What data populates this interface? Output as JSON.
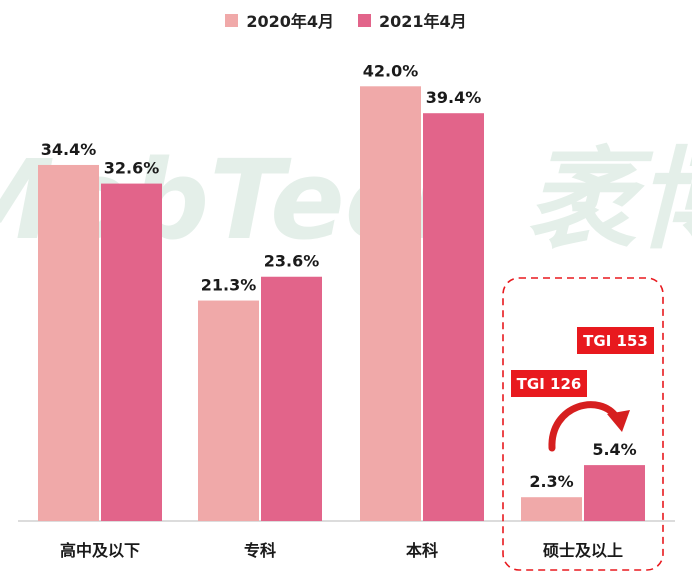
{
  "chart_data": {
    "type": "bar",
    "categories": [
      "高中及以下",
      "专科",
      "本科",
      "硕士及以上"
    ],
    "series": [
      {
        "name": "2020年4月",
        "values": [
          34.4,
          21.3,
          42.0,
          2.3
        ],
        "labels": [
          "34.4%",
          "21.3%",
          "42.0%",
          "2.3%"
        ]
      },
      {
        "name": "2021年4月",
        "values": [
          32.6,
          23.6,
          39.4,
          5.4
        ],
        "labels": [
          "32.6%",
          "23.6%",
          "39.4%",
          "5.4%"
        ]
      }
    ],
    "ylim": [
      0,
      50
    ],
    "grid": false,
    "legend_position": "top-center",
    "annotations": [
      {
        "category": "硕士及以上",
        "series": "2020年4月",
        "text": "TGI 126"
      },
      {
        "category": "硕士及以上",
        "series": "2021年4月",
        "text": "TGI 153"
      }
    ],
    "highlight_category": "硕士及以上"
  },
  "colors": {
    "series_2020": "#f0a9a9",
    "series_2021": "#e2648a",
    "tgi_badge": "#e8191e",
    "highlight_box": "#e8191e",
    "arrow": "#d61f1f",
    "watermark": "#e4efe9"
  },
  "watermark": {
    "text": "MobTech 袤博"
  }
}
